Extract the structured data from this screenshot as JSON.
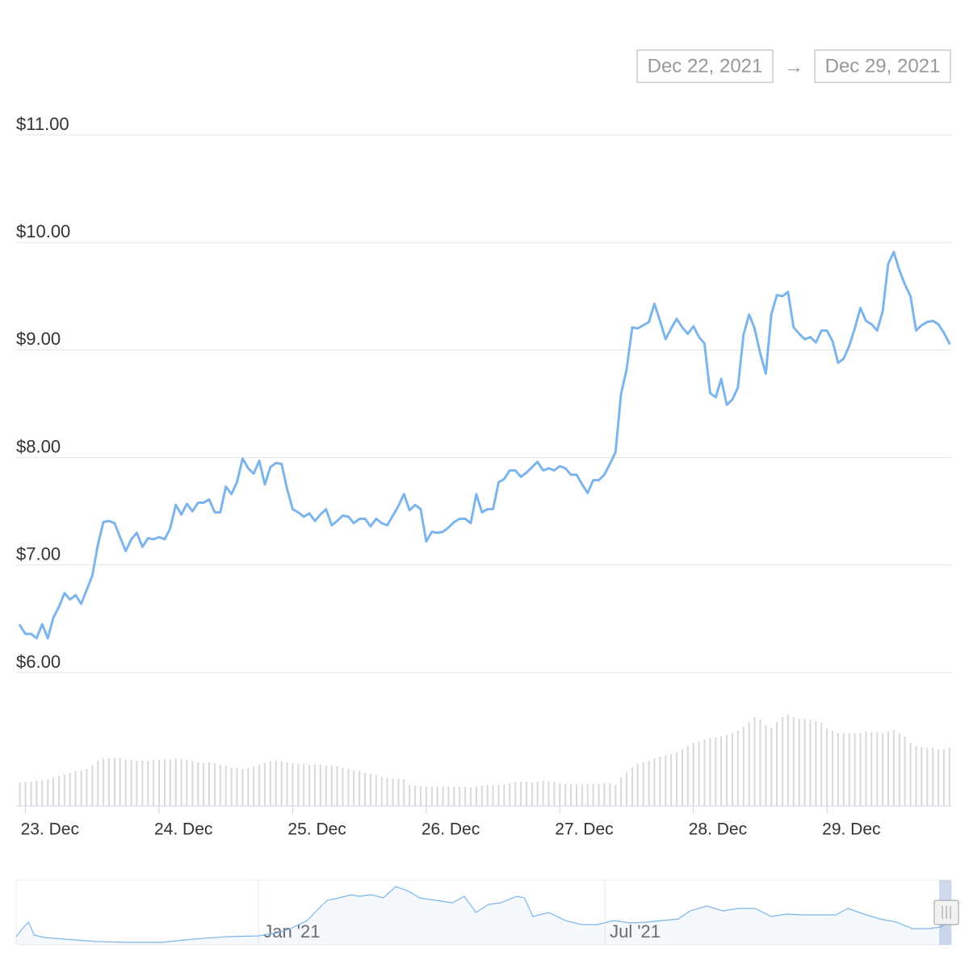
{
  "range_selector": {
    "from": "Dec 22, 2021",
    "separator": "→",
    "to": "Dec 29, 2021"
  },
  "chart_data": [
    {
      "type": "line",
      "ylim": [
        6,
        11
      ],
      "yticks": [
        {
          "value": 6,
          "label": "$6.00"
        },
        {
          "value": 7,
          "label": "$7.00"
        },
        {
          "value": 8,
          "label": "$8.00"
        },
        {
          "value": 9,
          "label": "$9.00"
        },
        {
          "value": 10,
          "label": "$10.00"
        },
        {
          "value": 11,
          "label": "$11.00"
        }
      ],
      "grid": true,
      "xlim": [
        22.93,
        29.93
      ],
      "xticks": [
        {
          "value": 23,
          "label": "23. Dec"
        },
        {
          "value": 24,
          "label": "24. Dec"
        },
        {
          "value": 25,
          "label": "25. Dec"
        },
        {
          "value": 26,
          "label": "26. Dec"
        },
        {
          "value": 27,
          "label": "27. Dec"
        },
        {
          "value": 28,
          "label": "28. Dec"
        },
        {
          "value": 29,
          "label": "29. Dec"
        }
      ],
      "y2lim": [
        0,
        158
      ],
      "x": [
        22.958,
        23,
        23.042,
        23.083,
        23.125,
        23.167,
        23.208,
        23.25,
        23.292,
        23.333,
        23.375,
        23.417,
        23.458,
        23.5,
        23.542,
        23.583,
        23.625,
        23.667,
        23.708,
        23.75,
        23.792,
        23.833,
        23.875,
        23.917,
        23.958,
        24,
        24.042,
        24.083,
        24.125,
        24.167,
        24.208,
        24.25,
        24.292,
        24.333,
        24.375,
        24.417,
        24.458,
        24.5,
        24.542,
        24.583,
        24.625,
        24.667,
        24.708,
        24.75,
        24.792,
        24.833,
        24.875,
        24.917,
        24.958,
        25,
        25.042,
        25.083,
        25.125,
        25.167,
        25.208,
        25.25,
        25.292,
        25.333,
        25.375,
        25.417,
        25.458,
        25.5,
        25.542,
        25.583,
        25.625,
        25.667,
        25.708,
        25.75,
        25.792,
        25.833,
        25.875,
        25.917,
        25.958,
        26,
        26.042,
        26.083,
        26.125,
        26.167,
        26.208,
        26.25,
        26.292,
        26.333,
        26.375,
        26.417,
        26.458,
        26.5,
        26.542,
        26.583,
        26.625,
        26.667,
        26.708,
        26.75,
        26.792,
        26.833,
        26.875,
        26.917,
        26.958,
        27,
        27.042,
        27.083,
        27.125,
        27.167,
        27.208,
        27.25,
        27.292,
        27.333,
        27.375,
        27.417,
        27.458,
        27.5,
        27.542,
        27.583,
        27.625,
        27.667,
        27.708,
        27.75,
        27.792,
        27.833,
        27.875,
        27.917,
        27.958,
        28,
        28.042,
        28.083,
        28.125,
        28.167,
        28.208,
        28.25,
        28.292,
        28.333,
        28.375,
        28.417,
        28.458,
        28.5,
        28.542,
        28.583,
        28.625,
        28.667,
        28.708,
        28.75,
        28.792,
        28.833,
        28.875,
        28.917,
        28.958,
        29,
        29.042,
        29.083,
        29.125,
        29.167,
        29.208,
        29.25,
        29.292,
        29.333,
        29.375,
        29.417,
        29.458,
        29.5,
        29.542,
        29.583,
        29.625,
        29.667,
        29.708,
        29.75,
        29.792,
        29.833,
        29.875,
        29.917
      ],
      "series": [
        {
          "color": "#7cb5ec",
          "values": [
            6.44,
            6.36,
            6.36,
            6.32,
            6.45,
            6.32,
            6.51,
            6.61,
            6.74,
            6.68,
            6.72,
            6.64,
            6.77,
            6.9,
            7.19,
            7.4,
            7.41,
            7.39,
            7.26,
            7.13,
            7.24,
            7.3,
            7.17,
            7.25,
            7.24,
            7.26,
            7.24,
            7.34,
            7.56,
            7.47,
            7.57,
            7.5,
            7.58,
            7.58,
            7.61,
            7.49,
            7.49,
            7.73,
            7.66,
            7.77,
            7.99,
            7.9,
            7.85,
            7.97,
            7.75,
            7.91,
            7.95,
            7.94,
            7.71,
            7.52,
            7.49,
            7.45,
            7.48,
            7.41,
            7.47,
            7.52,
            7.37,
            7.41,
            7.46,
            7.45,
            7.39,
            7.43,
            7.43,
            7.36,
            7.43,
            7.39,
            7.37,
            7.46,
            7.55,
            7.66,
            7.51,
            7.56,
            7.52,
            7.22,
            7.31,
            7.3,
            7.31,
            7.35,
            7.4,
            7.43,
            7.43,
            7.39,
            7.66,
            7.49,
            7.52,
            7.52,
            7.77,
            7.8,
            7.88,
            7.88,
            7.82,
            7.86,
            7.91,
            7.96,
            7.88,
            7.9,
            7.88,
            7.92,
            7.9,
            7.84,
            7.84,
            7.75,
            7.67,
            7.79,
            7.79,
            7.84,
            7.94,
            8.05,
            8.59,
            8.82,
            9.21,
            9.2,
            9.23,
            9.26,
            9.43,
            9.27,
            9.1,
            9.2,
            9.29,
            9.21,
            9.15,
            9.22,
            9.12,
            9.06,
            8.6,
            8.56,
            8.73,
            8.49,
            8.54,
            8.65,
            9.14,
            9.33,
            9.2,
            8.97,
            8.78,
            9.33,
            9.51,
            9.5,
            9.54,
            9.21,
            9.15,
            9.1,
            9.12,
            9.07,
            9.18,
            9.18,
            9.08,
            8.88,
            8.92,
            9.04,
            9.2,
            9.39,
            9.27,
            9.24,
            9.18,
            9.36,
            9.8,
            9.91,
            9.74,
            9.61,
            9.5,
            9.18,
            9.23,
            9.26,
            9.27,
            9.24,
            9.16,
            9.06
          ]
        },
        {
          "type": "bar",
          "axis": "y2",
          "color": "#d9d9d9",
          "values": [
            29,
            30,
            30,
            31,
            32,
            33,
            35,
            37,
            39,
            41,
            43,
            44,
            46,
            50,
            56,
            58,
            59,
            59,
            59,
            57,
            57,
            56,
            56,
            56,
            57,
            57,
            58,
            58,
            59,
            58,
            57,
            56,
            54,
            53,
            54,
            53,
            51,
            50,
            47,
            47,
            46,
            47,
            49,
            51,
            53,
            55,
            56,
            55,
            54,
            53,
            52,
            52,
            51,
            51,
            51,
            50,
            50,
            49,
            47,
            46,
            44,
            43,
            41,
            40,
            38,
            36,
            35,
            34,
            34,
            33,
            26,
            25,
            24,
            24,
            24,
            24,
            24,
            24,
            24,
            24,
            24,
            23,
            24,
            25,
            26,
            26,
            26,
            27,
            28,
            29,
            30,
            30,
            29,
            30,
            31,
            30,
            30,
            28,
            27,
            27,
            27,
            27,
            27,
            27,
            27,
            28,
            28,
            26,
            35,
            42,
            48,
            52,
            54,
            56,
            59,
            61,
            63,
            64,
            66,
            70,
            74,
            78,
            80,
            82,
            84,
            85,
            86,
            88,
            90,
            93,
            98,
            103,
            110,
            107,
            100,
            97,
            104,
            110,
            113,
            110,
            108,
            108,
            107,
            105,
            103,
            96,
            93,
            90,
            90,
            90,
            90,
            90,
            92,
            91,
            91,
            90,
            92,
            94,
            90,
            86,
            78,
            74,
            73,
            72,
            72,
            70,
            70,
            72
          ]
        }
      ]
    },
    {
      "type": "area",
      "color": "#7cb5ec",
      "xlim": [
        2020.65,
        2022.0
      ],
      "ylim": [
        0,
        75
      ],
      "xticks": [
        {
          "value": 2021,
          "label": "Jan '21"
        },
        {
          "value": 2021.5,
          "label": "Jul '21"
        }
      ],
      "x": [
        2020.65,
        2020.659,
        2020.668,
        2020.676,
        2020.691,
        2020.72,
        2020.767,
        2020.813,
        2020.86,
        2020.906,
        2020.953,
        2021.0,
        2021.029,
        2021.046,
        2021.07,
        2021.087,
        2021.099,
        2021.116,
        2021.134,
        2021.145,
        2021.163,
        2021.18,
        2021.198,
        2021.215,
        2021.233,
        2021.256,
        2021.28,
        2021.297,
        2021.314,
        2021.332,
        2021.349,
        2021.373,
        2021.384,
        2021.396,
        2021.419,
        2021.443,
        2021.466,
        2021.489,
        2021.513,
        2021.536,
        2021.559,
        2021.583,
        2021.606,
        2021.623,
        2021.647,
        2021.67,
        2021.693,
        2021.717,
        2021.74,
        2021.763,
        2021.787,
        2021.81,
        2021.833,
        2021.851,
        2021.874,
        2021.897,
        2021.921,
        2021.944,
        2021.967,
        2021.985,
        2021.997
      ],
      "values": [
        10,
        20,
        28,
        12,
        9,
        7,
        4,
        3,
        3,
        7,
        10,
        11,
        15,
        20,
        30,
        45,
        55,
        58,
        62,
        60,
        62,
        58,
        72,
        67,
        58,
        55,
        52,
        60,
        40,
        50,
        52,
        60,
        58,
        35,
        40,
        30,
        25,
        25,
        30,
        27,
        28,
        30,
        32,
        42,
        48,
        42,
        45,
        45,
        35,
        38,
        37,
        37,
        37,
        45,
        38,
        32,
        28,
        20,
        20,
        22,
        30
      ]
    }
  ]
}
